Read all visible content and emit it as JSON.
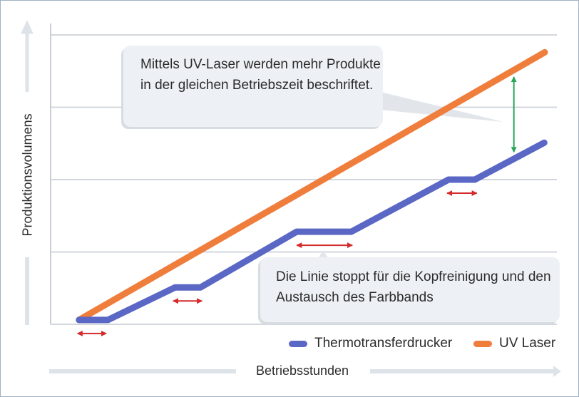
{
  "chart_data": {
    "type": "line",
    "title": "",
    "xlabel": "Betriebsstunden",
    "ylabel": "Produktionsvolumens",
    "xlim": [
      0,
      100
    ],
    "ylim": [
      0,
      4
    ],
    "grid": true,
    "legend_position": "bottom-right",
    "series": [
      {
        "name": "Thermotransferdrucker",
        "color": "#5a67c4",
        "x": [
          5.6,
          11.3,
          24.6,
          29.6,
          48.6,
          59.4,
          78.6,
          83.8,
          97.5
        ],
        "y": [
          0.06,
          0.06,
          0.51,
          0.51,
          1.28,
          1.28,
          2.0,
          2.0,
          2.51
        ]
      },
      {
        "name": "UV Laser",
        "color": "#ef7d3c",
        "x": [
          5.6,
          97.6
        ],
        "y": [
          0.06,
          3.76
        ]
      }
    ],
    "pause_markers": [
      [
        5.3,
        11.0
      ],
      [
        24.2,
        29.9
      ],
      [
        48.6,
        59.6
      ],
      [
        78.3,
        84.2
      ]
    ],
    "pause_marker_color": "#d42a2a",
    "gap_marker": {
      "x": 91.5,
      "y": [
        2.38,
        3.42
      ],
      "color": "#2aa55a"
    },
    "annotations": [
      "Mittels UV-Laser werden mehr Produkte in der gleichen Betriebszeit beschriftet.",
      "Die Linie stoppt für die Kopfreinigung und den Austausch des Farbbands"
    ]
  }
}
